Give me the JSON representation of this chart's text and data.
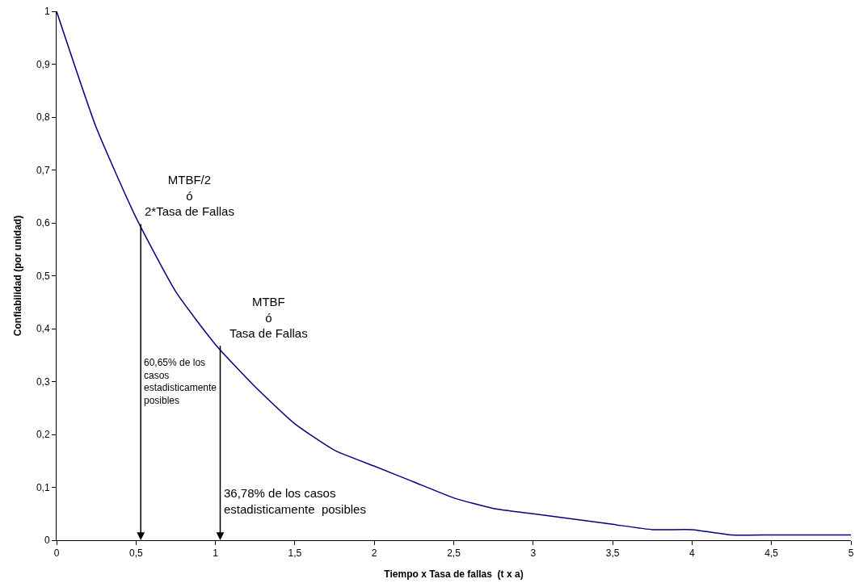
{
  "chart_data": {
    "type": "line",
    "xlabel": "Tiempo x Tasa de fallas  (t x a)",
    "ylabel": "Confiabilidad (por unidad)",
    "series": [
      {
        "color": "#000080",
        "x": [
          0,
          0.25,
          0.5,
          0.75,
          1,
          1.25,
          1.5,
          1.75,
          2,
          2.25,
          2.5,
          2.75,
          3,
          3.25,
          3.5,
          3.75,
          4,
          4.25,
          4.5,
          4.75,
          5
        ],
        "values": [
          1,
          0.78,
          0.61,
          0.47,
          0.37,
          0.29,
          0.22,
          0.17,
          0.14,
          0.11,
          0.08,
          0.06,
          0.05,
          0.04,
          0.03,
          0.02,
          0.02,
          0.01,
          0.01,
          0.01,
          0.01
        ]
      }
    ],
    "xlim": [
      0,
      5
    ],
    "ylim": [
      0,
      1
    ],
    "xticks": [
      0,
      {
        "value": 0.5,
        "label": "0,5"
      },
      1,
      {
        "value": 1.5,
        "label": "1,5"
      },
      2,
      {
        "value": 2.5,
        "label": "2,5"
      },
      3,
      {
        "value": 3.5,
        "label": "3,5"
      },
      4,
      {
        "value": 4.5,
        "label": "4,5"
      },
      5
    ],
    "yticks": [
      0,
      {
        "value": 0.1,
        "label": "0,1"
      },
      {
        "value": 0.2,
        "label": "0,2"
      },
      {
        "value": 0.3,
        "label": "0,3"
      },
      {
        "value": 0.4,
        "label": "0,4"
      },
      {
        "value": 0.5,
        "label": "0,5"
      },
      {
        "value": 0.6,
        "label": "0,6"
      },
      {
        "value": 0.7,
        "label": "0,7"
      },
      {
        "value": 0.8,
        "label": "0,8"
      },
      {
        "value": 0.9,
        "label": "0,9"
      },
      1
    ],
    "annotations": [
      {
        "text": "MTBF/2\nó\n2*Tasa de Fallas",
        "x": 0.53,
        "y": 0.6
      },
      "60,65% de los\ncasos\nestadisticamente\nposibles",
      {
        "text": "MTBF\nó\nTasa de Fallas",
        "x": 1.03,
        "y": 0.37
      },
      "36,78% de los casos\nestadisticamente  posibles"
    ],
    "legend": false,
    "marker": "none",
    "line_style": "solid"
  }
}
